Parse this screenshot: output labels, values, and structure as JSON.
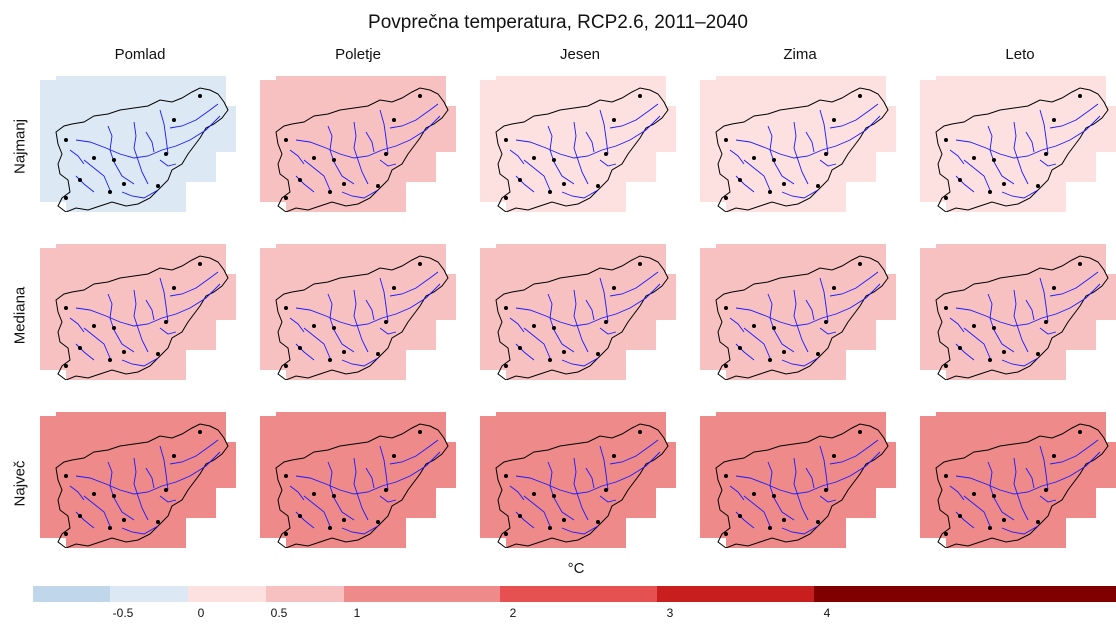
{
  "title": "Povprečna temperatura, RCP2.6, 2011–2040",
  "columns": [
    "Pomlad",
    "Poletje",
    "Jesen",
    "Zima",
    "Leto"
  ],
  "rows": [
    "Najmanj",
    "Mediana",
    "Največ"
  ],
  "unit": "°C",
  "legend": {
    "bins": [
      {
        "range": "< -0.5",
        "color": "#c0d6ea"
      },
      {
        "range": "-0.5 – 0",
        "color": "#dce9f5"
      },
      {
        "range": "0 – 0.5",
        "color": "#fde0e0"
      },
      {
        "range": "0.5 – 1",
        "color": "#f7c1c1"
      },
      {
        "range": "1 – 2",
        "color": "#ef8a8a"
      },
      {
        "range": "2 – 3",
        "color": "#e65050"
      },
      {
        "range": "3 – 4",
        "color": "#c81e1e"
      },
      {
        "range": "> 4",
        "color": "#800000"
      }
    ],
    "ticks": [
      "-0.5",
      "0",
      "0.5",
      "1",
      "2",
      "3",
      "4"
    ]
  },
  "panel_fill": [
    [
      "#dce9f5",
      "#f7c1c1",
      "#fde0e0",
      "#fde0e0",
      "#fde0e0"
    ],
    [
      "#f7c1c1",
      "#f7c1c1",
      "#f7c1c1",
      "#f7c1c1",
      "#f7c1c1"
    ],
    [
      "#ef8a8a",
      "#ef8a8a",
      "#ef8a8a",
      "#ef8a8a",
      "#ef8a8a"
    ]
  ],
  "colors": {
    "outline": "#000000",
    "rivers": "#1a1aff",
    "cities": "#000000"
  }
}
